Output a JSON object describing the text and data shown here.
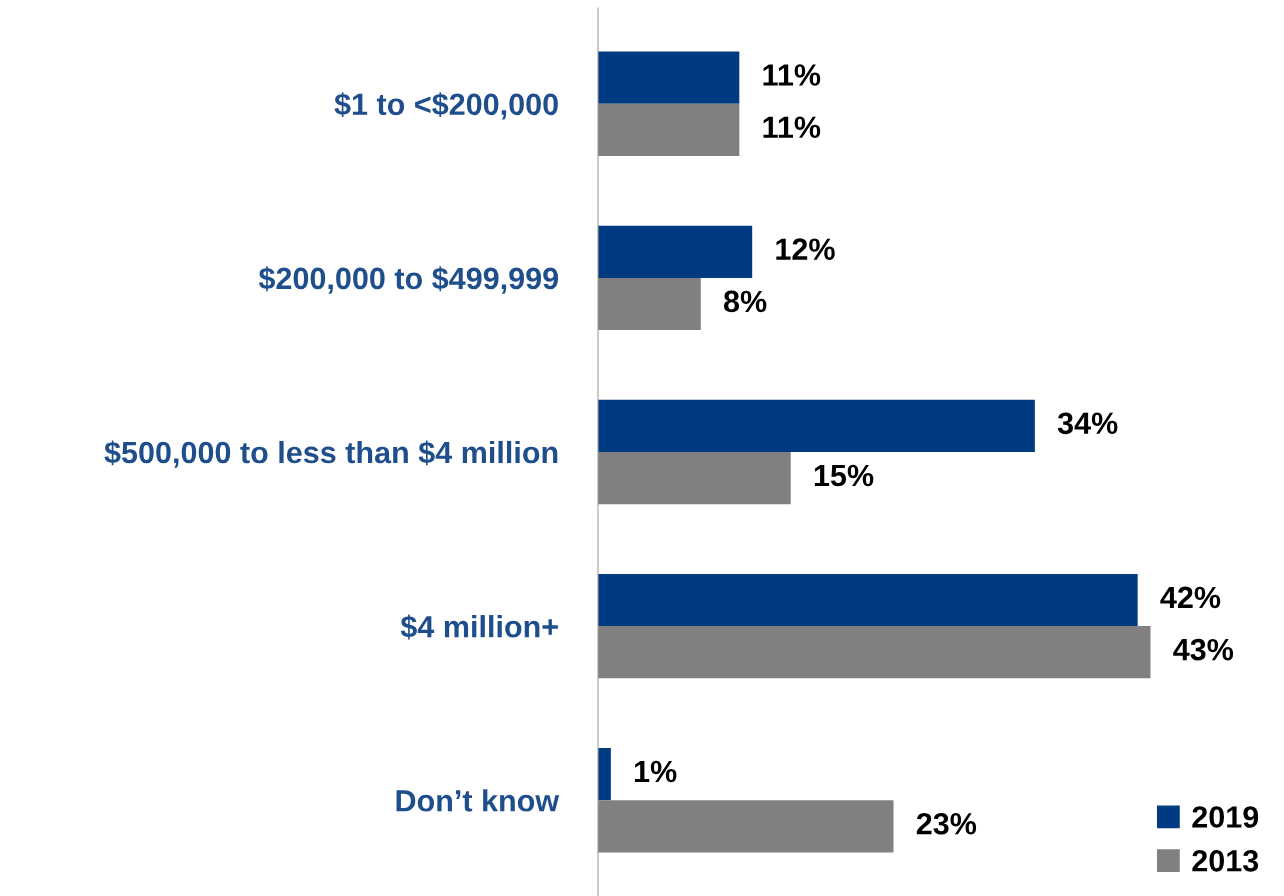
{
  "chart_data": {
    "type": "bar",
    "orientation": "horizontal",
    "categories": [
      "$1 to <$200,000",
      "$200,000 to $499,999",
      "$500,000 to less than $4 million",
      "$4 million+",
      "Don’t know"
    ],
    "series": [
      {
        "name": "2019",
        "color": "#003a80",
        "values": [
          11,
          12,
          34,
          42,
          1
        ],
        "value_labels": [
          "11%",
          "12%",
          "34%",
          "42%",
          "1%"
        ]
      },
      {
        "name": "2013",
        "color": "#808080",
        "values": [
          11,
          8,
          15,
          43,
          23
        ],
        "value_labels": [
          "11%",
          "8%",
          "15%",
          "43%",
          "23%"
        ]
      }
    ],
    "legend": "bottom right",
    "grid": false
  }
}
